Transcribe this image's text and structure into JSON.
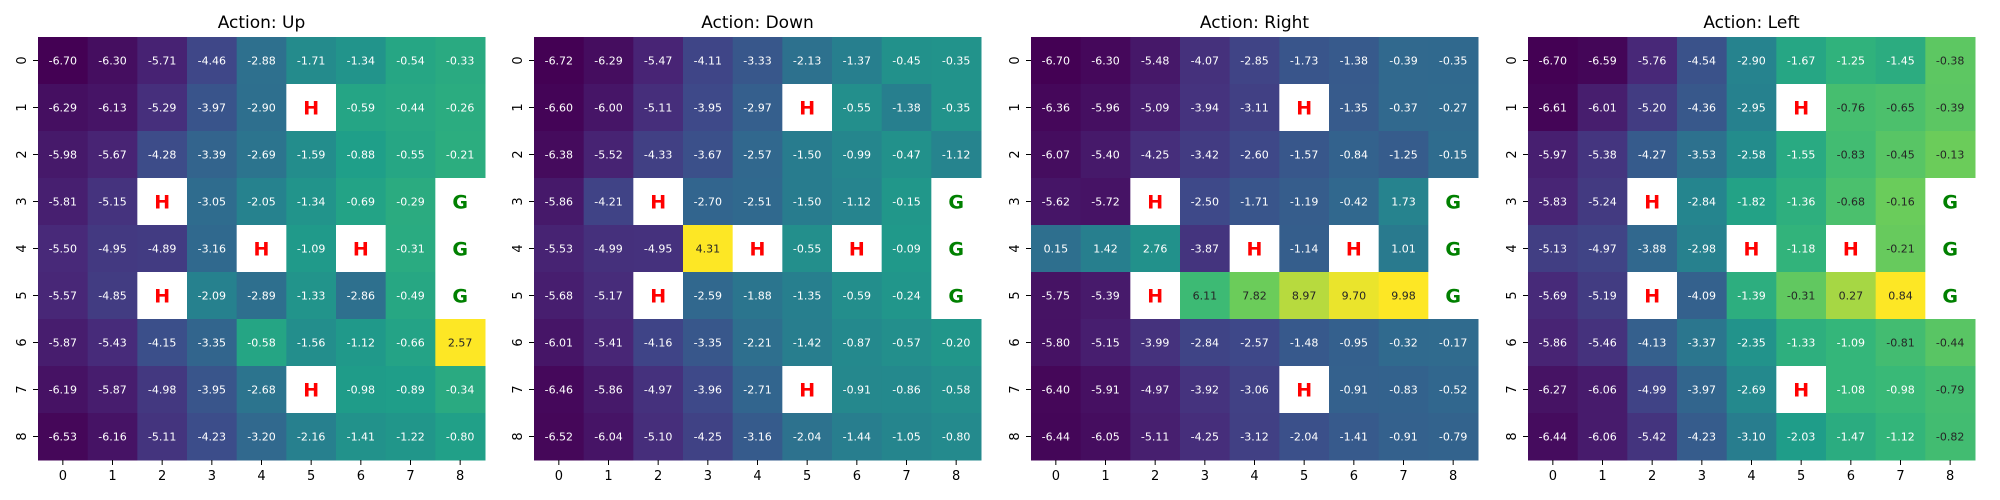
{
  "chart_data": [
    {
      "type": "heatmap",
      "title": "Action: Up",
      "x_tick_labels": [
        "0",
        "1",
        "2",
        "3",
        "4",
        "5",
        "6",
        "7",
        "8"
      ],
      "y_tick_labels": [
        "0",
        "1",
        "2",
        "3",
        "4",
        "5",
        "6",
        "7",
        "8"
      ],
      "colormap": "viridis",
      "values": [
        [
          -6.7,
          -6.3,
          -5.71,
          -4.46,
          -2.88,
          -1.71,
          -1.34,
          -0.54,
          -0.33
        ],
        [
          -6.29,
          -6.13,
          -5.29,
          -3.97,
          -2.9,
          null,
          -0.59,
          -0.44,
          -0.26
        ],
        [
          -5.98,
          -5.67,
          -4.28,
          -3.39,
          -2.69,
          -1.59,
          -0.88,
          -0.55,
          -0.21
        ],
        [
          -5.81,
          -5.15,
          null,
          -3.05,
          -2.05,
          -1.34,
          -0.69,
          -0.29,
          null
        ],
        [
          -5.5,
          -4.95,
          -4.89,
          -3.16,
          null,
          -1.09,
          null,
          -0.31,
          null
        ],
        [
          -5.57,
          -4.85,
          null,
          -2.09,
          -2.89,
          -1.33,
          -2.86,
          -0.49,
          null
        ],
        [
          -5.87,
          -5.43,
          -4.15,
          -3.35,
          -0.58,
          -1.56,
          -1.12,
          -0.66,
          2.57
        ],
        [
          -6.19,
          -5.87,
          -4.98,
          -3.95,
          -2.68,
          null,
          -0.98,
          -0.89,
          -0.34
        ],
        [
          -6.53,
          -6.16,
          -5.11,
          -4.23,
          -3.2,
          -2.16,
          -1.41,
          -1.22,
          -0.8
        ]
      ],
      "special_cells": [
        {
          "row": 1,
          "col": 5,
          "label": "H"
        },
        {
          "row": 3,
          "col": 2,
          "label": "H"
        },
        {
          "row": 3,
          "col": 8,
          "label": "G"
        },
        {
          "row": 4,
          "col": 4,
          "label": "H"
        },
        {
          "row": 4,
          "col": 6,
          "label": "H"
        },
        {
          "row": 4,
          "col": 8,
          "label": "G"
        },
        {
          "row": 5,
          "col": 2,
          "label": "H"
        },
        {
          "row": 5,
          "col": 8,
          "label": "G"
        },
        {
          "row": 7,
          "col": 5,
          "label": "H"
        }
      ]
    },
    {
      "type": "heatmap",
      "title": "Action: Down",
      "x_tick_labels": [
        "0",
        "1",
        "2",
        "3",
        "4",
        "5",
        "6",
        "7",
        "8"
      ],
      "y_tick_labels": [
        "0",
        "1",
        "2",
        "3",
        "4",
        "5",
        "6",
        "7",
        "8"
      ],
      "colormap": "viridis",
      "values": [
        [
          -6.72,
          -6.29,
          -5.47,
          -4.11,
          -3.33,
          -2.13,
          -1.37,
          -0.45,
          -0.35
        ],
        [
          -6.6,
          -6.0,
          -5.11,
          -3.95,
          -2.97,
          null,
          -0.55,
          -1.38,
          -0.35
        ],
        [
          -6.38,
          -5.52,
          -4.33,
          -3.67,
          -2.57,
          -1.5,
          -0.99,
          -0.47,
          -1.12
        ],
        [
          -5.86,
          -4.21,
          null,
          -2.7,
          -2.51,
          -1.5,
          -1.12,
          -0.15,
          null
        ],
        [
          -5.53,
          -4.99,
          -4.95,
          4.31,
          null,
          -0.55,
          null,
          -0.09,
          null
        ],
        [
          -5.68,
          -5.17,
          null,
          -2.59,
          -1.88,
          -1.35,
          -0.59,
          -0.24,
          null
        ],
        [
          -6.01,
          -5.41,
          -4.16,
          -3.35,
          -2.21,
          -1.42,
          -0.87,
          -0.57,
          -0.2
        ],
        [
          -6.46,
          -5.86,
          -4.97,
          -3.96,
          -2.71,
          null,
          -0.91,
          -0.86,
          -0.58
        ],
        [
          -6.52,
          -6.04,
          -5.1,
          -4.25,
          -3.16,
          -2.04,
          -1.44,
          -1.05,
          -0.8
        ]
      ],
      "special_cells": [
        {
          "row": 1,
          "col": 5,
          "label": "H"
        },
        {
          "row": 3,
          "col": 2,
          "label": "H"
        },
        {
          "row": 3,
          "col": 8,
          "label": "G"
        },
        {
          "row": 4,
          "col": 4,
          "label": "H"
        },
        {
          "row": 4,
          "col": 6,
          "label": "H"
        },
        {
          "row": 4,
          "col": 8,
          "label": "G"
        },
        {
          "row": 5,
          "col": 2,
          "label": "H"
        },
        {
          "row": 5,
          "col": 8,
          "label": "G"
        },
        {
          "row": 7,
          "col": 5,
          "label": "H"
        }
      ]
    },
    {
      "type": "heatmap",
      "title": "Action: Right",
      "x_tick_labels": [
        "0",
        "1",
        "2",
        "3",
        "4",
        "5",
        "6",
        "7",
        "8"
      ],
      "y_tick_labels": [
        "0",
        "1",
        "2",
        "3",
        "4",
        "5",
        "6",
        "7",
        "8"
      ],
      "colormap": "viridis",
      "values": [
        [
          -6.7,
          -6.3,
          -5.48,
          -4.07,
          -2.85,
          -1.73,
          -1.38,
          -0.39,
          -0.35
        ],
        [
          -6.36,
          -5.96,
          -5.09,
          -3.94,
          -3.11,
          null,
          -1.35,
          -0.37,
          -0.27
        ],
        [
          -6.07,
          -5.4,
          -4.25,
          -3.42,
          -2.6,
          -1.57,
          -0.84,
          -1.25,
          -0.15
        ],
        [
          -5.62,
          -5.72,
          null,
          -2.5,
          -1.71,
          -1.19,
          -0.42,
          1.73,
          null
        ],
        [
          0.15,
          1.42,
          2.76,
          -3.87,
          null,
          -1.14,
          null,
          1.01,
          null
        ],
        [
          -5.75,
          -5.39,
          null,
          6.11,
          7.82,
          8.97,
          9.7,
          9.98,
          null
        ],
        [
          -5.8,
          -5.15,
          -3.99,
          -2.84,
          -2.57,
          -1.48,
          -0.95,
          -0.32,
          -0.17
        ],
        [
          -6.4,
          -5.91,
          -4.97,
          -3.92,
          -3.06,
          null,
          -0.91,
          -0.83,
          -0.52
        ],
        [
          -6.44,
          -6.05,
          -5.11,
          -4.25,
          -3.12,
          -2.04,
          -1.41,
          -0.91,
          -0.79
        ]
      ],
      "special_cells": [
        {
          "row": 1,
          "col": 5,
          "label": "H"
        },
        {
          "row": 3,
          "col": 2,
          "label": "H"
        },
        {
          "row": 3,
          "col": 8,
          "label": "G"
        },
        {
          "row": 4,
          "col": 4,
          "label": "H"
        },
        {
          "row": 4,
          "col": 6,
          "label": "H"
        },
        {
          "row": 4,
          "col": 8,
          "label": "G"
        },
        {
          "row": 5,
          "col": 2,
          "label": "H"
        },
        {
          "row": 5,
          "col": 8,
          "label": "G"
        },
        {
          "row": 7,
          "col": 5,
          "label": "H"
        }
      ]
    },
    {
      "type": "heatmap",
      "title": "Action: Left",
      "x_tick_labels": [
        "0",
        "1",
        "2",
        "3",
        "4",
        "5",
        "6",
        "7",
        "8"
      ],
      "y_tick_labels": [
        "0",
        "1",
        "2",
        "3",
        "4",
        "5",
        "6",
        "7",
        "8"
      ],
      "colormap": "viridis",
      "values": [
        [
          -6.7,
          -6.59,
          -5.76,
          -4.54,
          -2.9,
          -1.67,
          -1.25,
          -1.45,
          -0.38
        ],
        [
          -6.61,
          -6.01,
          -5.2,
          -4.36,
          -2.95,
          null,
          -0.76,
          -0.65,
          -0.39
        ],
        [
          -5.97,
          -5.38,
          -4.27,
          -3.53,
          -2.58,
          -1.55,
          -0.83,
          -0.45,
          -0.13
        ],
        [
          -5.83,
          -5.24,
          null,
          -2.84,
          -1.82,
          -1.36,
          -0.68,
          -0.16,
          null
        ],
        [
          -5.13,
          -4.97,
          -3.88,
          -2.98,
          null,
          -1.18,
          null,
          -0.21,
          null
        ],
        [
          -5.69,
          -5.19,
          null,
          -4.09,
          -1.39,
          -0.31,
          0.27,
          0.84,
          null
        ],
        [
          -5.86,
          -5.46,
          -4.13,
          -3.37,
          -2.35,
          -1.33,
          -1.09,
          -0.81,
          -0.44
        ],
        [
          -6.27,
          -6.06,
          -4.99,
          -3.97,
          -2.69,
          null,
          -1.08,
          -0.98,
          -0.79
        ],
        [
          -6.44,
          -6.06,
          -5.42,
          -4.23,
          -3.1,
          -2.03,
          -1.47,
          -1.12,
          -0.82
        ]
      ],
      "special_cells": [
        {
          "row": 1,
          "col": 5,
          "label": "H"
        },
        {
          "row": 3,
          "col": 2,
          "label": "H"
        },
        {
          "row": 3,
          "col": 8,
          "label": "G"
        },
        {
          "row": 4,
          "col": 4,
          "label": "H"
        },
        {
          "row": 4,
          "col": 6,
          "label": "H"
        },
        {
          "row": 4,
          "col": 8,
          "label": "G"
        },
        {
          "row": 5,
          "col": 2,
          "label": "H"
        },
        {
          "row": 5,
          "col": 8,
          "label": "G"
        },
        {
          "row": 7,
          "col": 5,
          "label": "H"
        }
      ]
    }
  ],
  "colors": {
    "hole_text": "#ff0000",
    "goal_text": "#008000",
    "special_cell_bg": "#ffffff"
  }
}
